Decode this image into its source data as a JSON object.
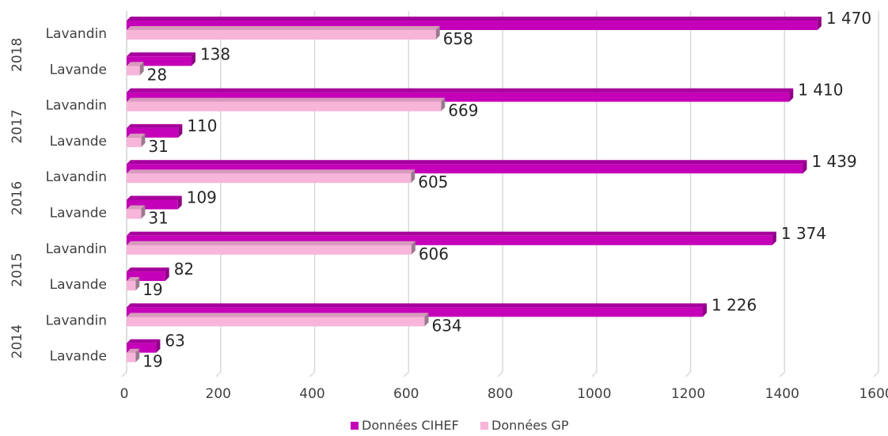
{
  "chart_data": {
    "type": "bar",
    "orientation": "horizontal",
    "style": "3d",
    "groups": [
      {
        "year": "2018",
        "rows": [
          {
            "category": "Lavandin",
            "cihef": 1470,
            "cihef_label": "1 470",
            "gp": 658,
            "gp_label": "658"
          },
          {
            "category": "Lavande",
            "cihef": 138,
            "cihef_label": "138",
            "gp": 28,
            "gp_label": "28"
          }
        ]
      },
      {
        "year": "2017",
        "rows": [
          {
            "category": "Lavandin",
            "cihef": 1410,
            "cihef_label": "1 410",
            "gp": 669,
            "gp_label": "669"
          },
          {
            "category": "Lavande",
            "cihef": 110,
            "cihef_label": "110",
            "gp": 31,
            "gp_label": "31"
          }
        ]
      },
      {
        "year": "2016",
        "rows": [
          {
            "category": "Lavandin",
            "cihef": 1439,
            "cihef_label": "1 439",
            "gp": 605,
            "gp_label": "605"
          },
          {
            "category": "Lavande",
            "cihef": 109,
            "cihef_label": "109",
            "gp": 31,
            "gp_label": "31"
          }
        ]
      },
      {
        "year": "2015",
        "rows": [
          {
            "category": "Lavandin",
            "cihef": 1374,
            "cihef_label": "1 374",
            "gp": 606,
            "gp_label": "606"
          },
          {
            "category": "Lavande",
            "cihef": 82,
            "cihef_label": "82",
            "gp": 19,
            "gp_label": "19"
          }
        ]
      },
      {
        "year": "2014",
        "rows": [
          {
            "category": "Lavandin",
            "cihef": 1226,
            "cihef_label": "1 226",
            "gp": 634,
            "gp_label": "634"
          },
          {
            "category": "Lavande",
            "cihef": 63,
            "cihef_label": "63",
            "gp": 19,
            "gp_label": "19"
          }
        ]
      }
    ],
    "series": [
      {
        "key": "cihef",
        "name": "Données CIHEF",
        "color": "#c400b8",
        "side": "#8e0085",
        "top": "#a6009c"
      },
      {
        "key": "gp",
        "name": "Données GP",
        "color": "#f7b5da",
        "side": "#9a7a8e",
        "top": "#d89bbd"
      }
    ],
    "xlim": [
      0,
      1600
    ],
    "xticks": [
      0,
      200,
      400,
      600,
      800,
      1000,
      1200,
      1400,
      1600
    ],
    "grid": true,
    "legend_position": "bottom"
  }
}
